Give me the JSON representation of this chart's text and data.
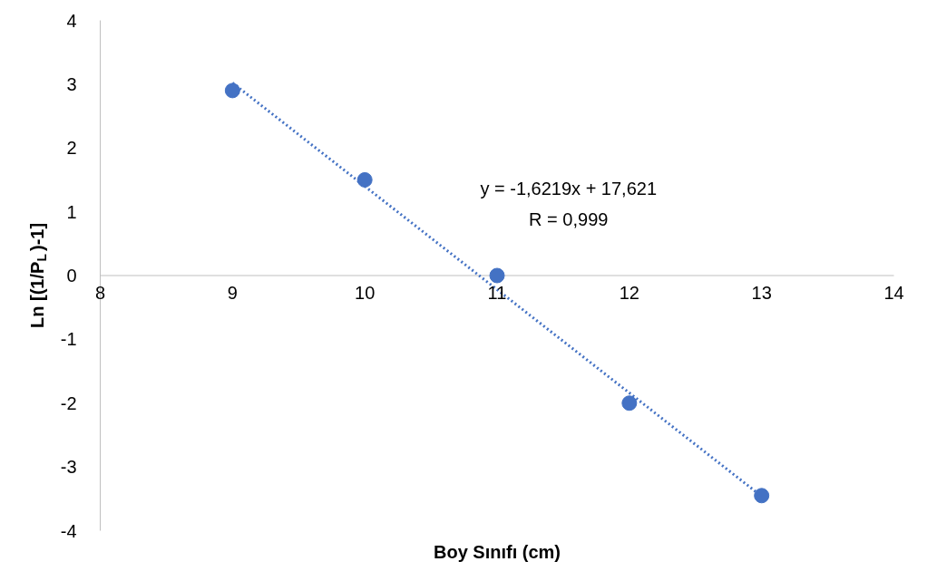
{
  "chart_data": {
    "type": "scatter",
    "xlabel": "Boy Sınıfı (cm)",
    "ylabel": "Ln [(1/P$_{L}$)-1]",
    "series": [
      {
        "color": "#4472c4",
        "x": [
          9,
          10,
          11,
          12,
          13
        ],
        "values": [
          2.9,
          1.5,
          0,
          -2,
          -3.45
        ],
        "marker": "circle"
      },
      {
        "type": "line",
        "color": "#4472c4",
        "x": [
          9,
          13
        ],
        "values": [
          3.02,
          -3.46
        ],
        "line_style": "dotted"
      }
    ],
    "xlim": [
      8,
      14
    ],
    "xticks": [
      8,
      9,
      10,
      11,
      12,
      13,
      14
    ],
    "ylim": [
      -4,
      4
    ],
    "yticks": [
      -4,
      -3,
      -2,
      -1,
      0,
      1,
      2,
      3,
      4
    ],
    "annotations": [
      "y = -1,6219x + 17,621",
      "R = 0,999"
    ],
    "grid": false
  }
}
